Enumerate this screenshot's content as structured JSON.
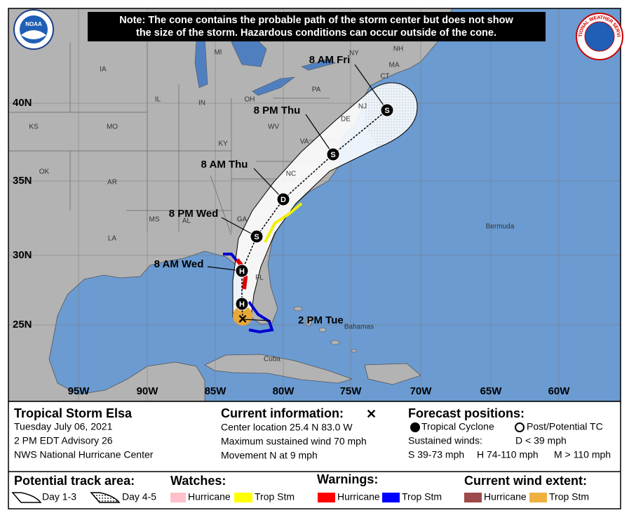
{
  "note": [
    "Note: The cone contains the probable path of the storm center but does not show",
    "the size of the storm. Hazardous conditions can occur outside of the cone."
  ],
  "logos": {
    "noaa": "NOAA",
    "nws": "NATIONAL WEATHER SERVICE"
  },
  "map": {
    "lat_labels": [
      "40N",
      "35N",
      "30N",
      "25N"
    ],
    "lon_labels": [
      "95W",
      "90W",
      "85W",
      "80W",
      "75W",
      "70W",
      "65W",
      "60W"
    ],
    "places": [
      "MI",
      "NY",
      "NH",
      "MA",
      "CT",
      "IA",
      "PA",
      "NJ",
      "IL",
      "IN",
      "OH",
      "DE",
      "KS",
      "MO",
      "WV",
      "KY",
      "VA",
      "OK",
      "AR",
      "NC",
      "MS",
      "AL",
      "GA",
      "LA",
      "FL",
      "Bermuda",
      "Bahamas",
      "Cuba"
    ],
    "track": [
      {
        "time": "2 PM Tue",
        "symbol": "✕"
      },
      {
        "symbol": "H"
      },
      {
        "time": "8 AM Wed",
        "symbol": "H"
      },
      {
        "time": "8 PM Wed",
        "symbol": "S"
      },
      {
        "time": "8 AM Thu",
        "symbol": "D"
      },
      {
        "time": "8 PM Thu",
        "symbol": "S"
      },
      {
        "time": "8 AM Fri",
        "symbol": "S"
      }
    ]
  },
  "info": {
    "storm": {
      "title": "Tropical Storm Elsa",
      "lines": [
        "Tuesday July 06, 2021",
        "2 PM EDT Advisory 26",
        "NWS National Hurricane Center"
      ]
    },
    "current": {
      "title": "Current information:",
      "lines": [
        "Center location 25.4 N 83.0 W",
        "Maximum sustained wind 70 mph",
        "Movement N at 9 mph"
      ]
    },
    "forecast": {
      "title": "Forecast positions:",
      "tropical": "Tropical Cyclone",
      "post": "Post/Potential TC",
      "winds": "Sustained winds:",
      "d": "D < 39 mph",
      "s": "S 39-73 mph",
      "h": "H 74-110 mph",
      "m": "M > 110 mph"
    }
  },
  "legend": {
    "track_title": "Potential track area:",
    "day13": "Day 1-3",
    "day45": "Day 4-5",
    "watches_title": "Watches:",
    "watch_hurricane": "Hurricane",
    "watch_ts": "Trop Stm",
    "warnings_title": "Warnings:",
    "warn_hurricane": "Hurricane",
    "warn_ts": "Trop Stm",
    "wind_title": "Current wind extent:",
    "wind_hurricane": "Hurricane",
    "wind_ts": "Trop Stm"
  }
}
